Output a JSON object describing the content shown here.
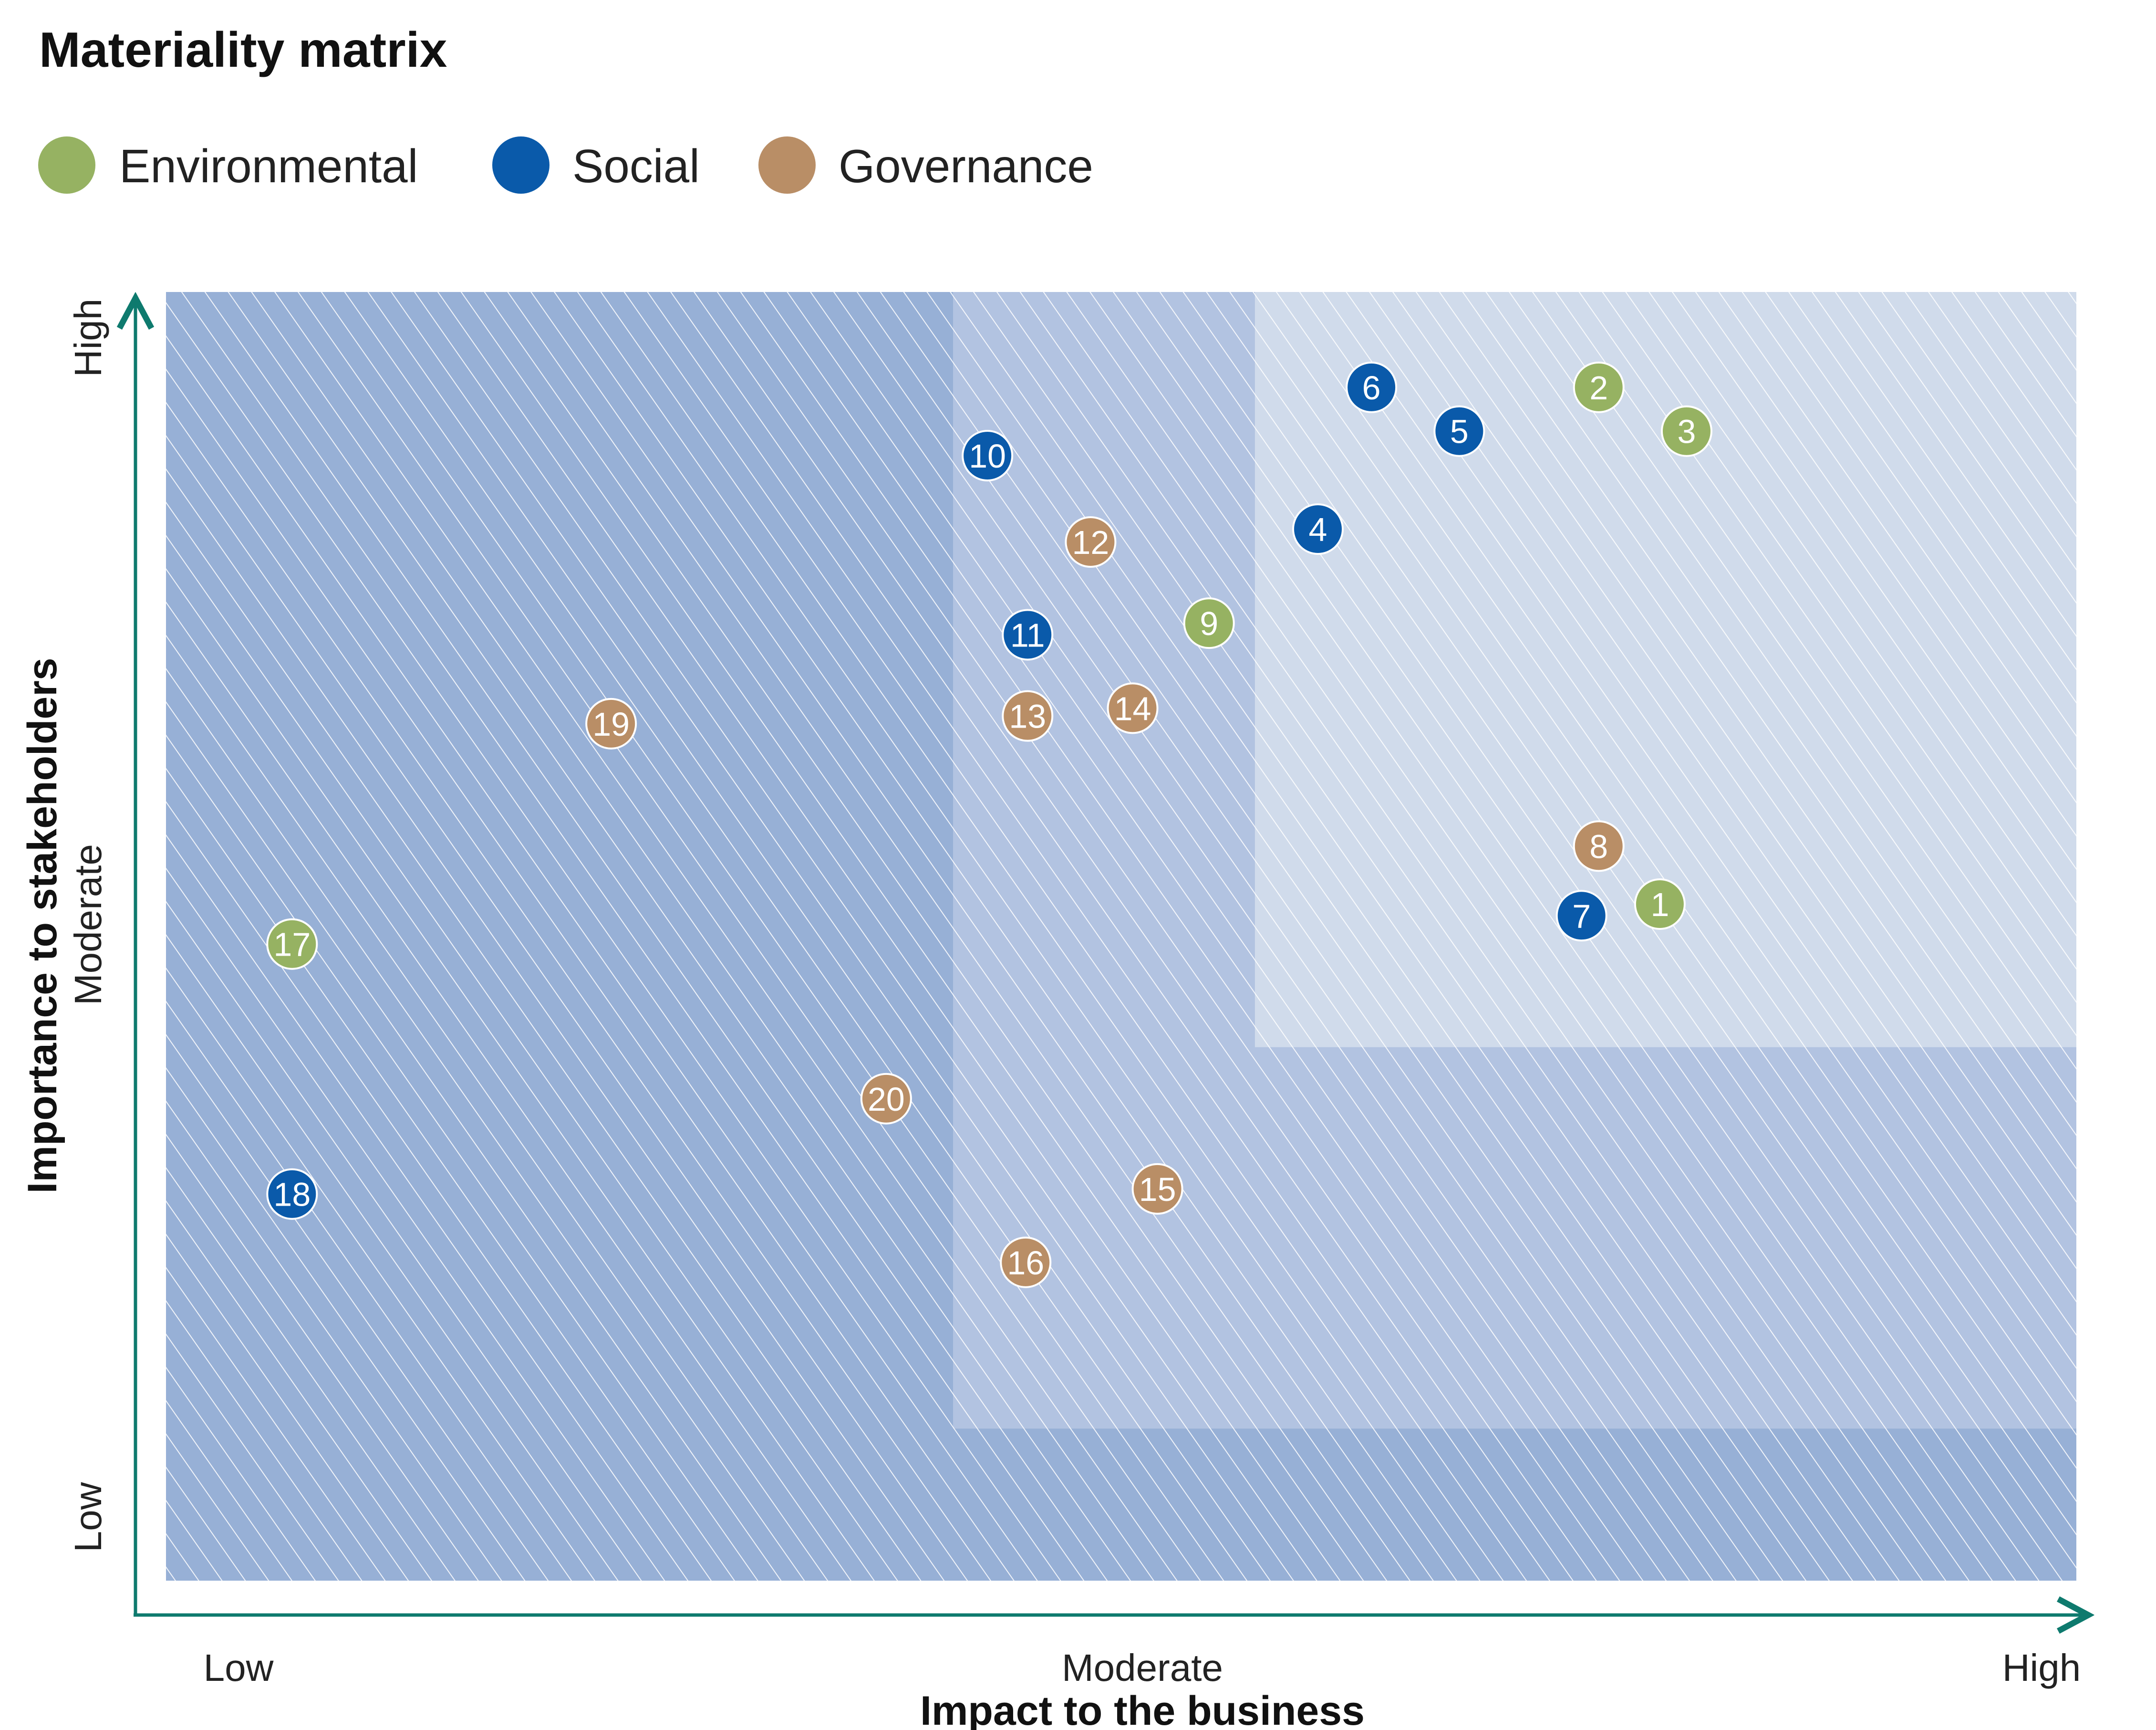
{
  "title": "Materiality matrix",
  "colors": {
    "Environmental": "#96b262",
    "Social": "#0a5aaa",
    "Governance": "#b98e66",
    "axis": "#0e7a6e",
    "zone_low": "#97b0d6",
    "zone_mid": "#b2c3e1",
    "zone_high": "#d0dbeb"
  },
  "legend": [
    {
      "label": "Environmental",
      "color": "#96b262"
    },
    {
      "label": "Social",
      "color": "#0a5aaa"
    },
    {
      "label": "Governance",
      "color": "#b98e66"
    }
  ],
  "chart_data": {
    "type": "scatter",
    "title": "Materiality matrix",
    "xlabel": "Impact to the business",
    "ylabel": "Importance to stakeholders",
    "xlim": [
      0,
      100
    ],
    "ylim": [
      0,
      100
    ],
    "x_ticks": [
      "Low",
      "Moderate",
      "High"
    ],
    "y_ticks": [
      "Low",
      "Moderate",
      "High"
    ],
    "grid": false,
    "legend_position": "top-left",
    "zones": [
      {
        "name": "low",
        "x": [
          0,
          100
        ],
        "y": [
          0,
          100
        ]
      },
      {
        "name": "moderate",
        "x": [
          41.2,
          100
        ],
        "y": [
          11.8,
          100
        ]
      },
      {
        "name": "high",
        "x": [
          57,
          100
        ],
        "y": [
          41.4,
          100
        ]
      }
    ],
    "series": [
      {
        "name": "Environmental",
        "points": [
          {
            "label": "1",
            "x": 78.2,
            "y": 52.5
          },
          {
            "label": "2",
            "x": 75.0,
            "y": 92.6
          },
          {
            "label": "3",
            "x": 79.6,
            "y": 89.2
          },
          {
            "label": "9",
            "x": 54.6,
            "y": 74.3
          },
          {
            "label": "17",
            "x": 6.6,
            "y": 49.4
          }
        ]
      },
      {
        "name": "Social",
        "points": [
          {
            "label": "4",
            "x": 60.3,
            "y": 81.6
          },
          {
            "label": "5",
            "x": 67.7,
            "y": 89.2
          },
          {
            "label": "6",
            "x": 63.1,
            "y": 92.6
          },
          {
            "label": "7",
            "x": 74.1,
            "y": 51.6
          },
          {
            "label": "10",
            "x": 43.0,
            "y": 87.3
          },
          {
            "label": "11",
            "x": 45.1,
            "y": 73.4
          },
          {
            "label": "18",
            "x": 6.6,
            "y": 30.0
          }
        ]
      },
      {
        "name": "Governance",
        "points": [
          {
            "label": "8",
            "x": 75.0,
            "y": 57.0
          },
          {
            "label": "12",
            "x": 48.4,
            "y": 80.6
          },
          {
            "label": "13",
            "x": 45.1,
            "y": 67.1
          },
          {
            "label": "14",
            "x": 50.6,
            "y": 67.7
          },
          {
            "label": "15",
            "x": 51.9,
            "y": 30.4
          },
          {
            "label": "16",
            "x": 45.0,
            "y": 24.7
          },
          {
            "label": "19",
            "x": 23.3,
            "y": 66.5
          },
          {
            "label": "20",
            "x": 37.7,
            "y": 37.4
          }
        ]
      }
    ]
  }
}
